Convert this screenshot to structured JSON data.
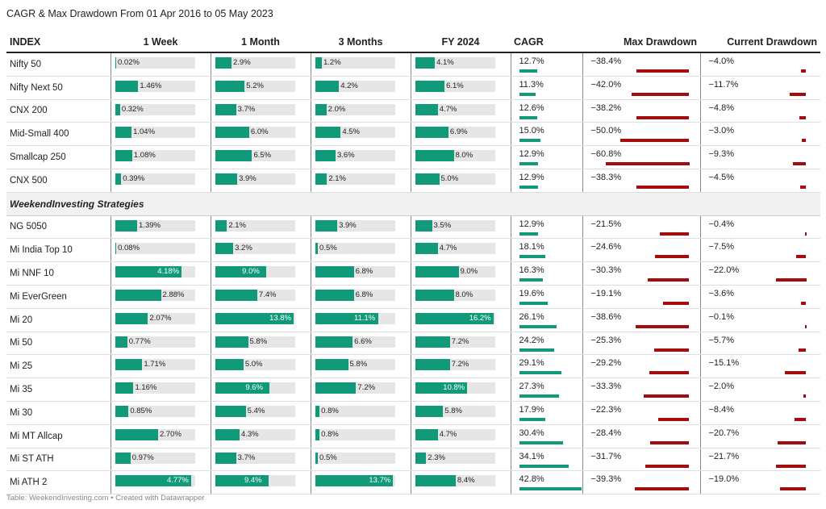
{
  "title": "CAGR & Max Drawdown From 01 Apr 2016 to 05 May 2023",
  "footer": "Table: WeekendInvesting.com • Created with Datawrapper",
  "colors": {
    "bar": "#109a7a",
    "bar_bg": "#e6e6e6",
    "drawdown": "#a30d0d"
  },
  "chart_data": {
    "type": "table",
    "columns": [
      "INDEX",
      "1 Week",
      "1 Month",
      "3 Months",
      "FY 2024",
      "CAGR",
      "Max Drawdown",
      "Current Drawdown"
    ],
    "section_label": "WeekendInvesting Strategies",
    "indices": [
      {
        "name": "Nifty 50",
        "w1": "0.02%",
        "m1": "2.9%",
        "m3": "1.2%",
        "fy": "4.1%",
        "cagr": "12.7%",
        "maxdd": "−38.4%",
        "curdd": "−4.0%"
      },
      {
        "name": "Nifty Next 50",
        "w1": "1.46%",
        "m1": "5.2%",
        "m3": "4.2%",
        "fy": "6.1%",
        "cagr": "11.3%",
        "maxdd": "−42.0%",
        "curdd": "−11.7%"
      },
      {
        "name": "CNX 200",
        "w1": "0.32%",
        "m1": "3.7%",
        "m3": "2.0%",
        "fy": "4.7%",
        "cagr": "12.6%",
        "maxdd": "−38.2%",
        "curdd": "−4.8%"
      },
      {
        "name": "Mid-Small 400",
        "w1": "1.04%",
        "m1": "6.0%",
        "m3": "4.5%",
        "fy": "6.9%",
        "cagr": "15.0%",
        "maxdd": "−50.0%",
        "curdd": "−3.0%"
      },
      {
        "name": "Smallcap 250",
        "w1": "1.08%",
        "m1": "6.5%",
        "m3": "3.6%",
        "fy": "8.0%",
        "cagr": "12.9%",
        "maxdd": "−60.8%",
        "curdd": "−9.3%"
      },
      {
        "name": "CNX 500",
        "w1": "0.39%",
        "m1": "3.9%",
        "m3": "2.1%",
        "fy": "5.0%",
        "cagr": "12.9%",
        "maxdd": "−38.3%",
        "curdd": "−4.5%"
      }
    ],
    "strategies": [
      {
        "name": "NG 5050",
        "w1": "1.39%",
        "m1": "2.1%",
        "m3": "3.9%",
        "fy": "3.5%",
        "cagr": "12.9%",
        "maxdd": "−21.5%",
        "curdd": "−0.4%"
      },
      {
        "name": "Mi India Top 10",
        "w1": "0.08%",
        "m1": "3.2%",
        "m3": "0.5%",
        "fy": "4.7%",
        "cagr": "18.1%",
        "maxdd": "−24.6%",
        "curdd": "−7.5%"
      },
      {
        "name": "Mi NNF 10",
        "w1": "4.18%",
        "m1": "9.0%",
        "m3": "6.8%",
        "fy": "9.0%",
        "cagr": "16.3%",
        "maxdd": "−30.3%",
        "curdd": "−22.0%"
      },
      {
        "name": "Mi EverGreen",
        "w1": "2.88%",
        "m1": "7.4%",
        "m3": "6.8%",
        "fy": "8.0%",
        "cagr": "19.6%",
        "maxdd": "−19.1%",
        "curdd": "−3.6%"
      },
      {
        "name": "Mi 20",
        "w1": "2.07%",
        "m1": "13.8%",
        "m3": "11.1%",
        "fy": "16.2%",
        "cagr": "26.1%",
        "maxdd": "−38.6%",
        "curdd": "−0.1%"
      },
      {
        "name": "Mi 50",
        "w1": "0.77%",
        "m1": "5.8%",
        "m3": "6.6%",
        "fy": "7.2%",
        "cagr": "24.2%",
        "maxdd": "−25.3%",
        "curdd": "−5.7%"
      },
      {
        "name": "Mi 25",
        "w1": "1.71%",
        "m1": "5.0%",
        "m3": "5.8%",
        "fy": "7.2%",
        "cagr": "29.1%",
        "maxdd": "−29.2%",
        "curdd": "−15.1%"
      },
      {
        "name": "Mi 35",
        "w1": "1.16%",
        "m1": "9.6%",
        "m3": "7.2%",
        "fy": "10.8%",
        "cagr": "27.3%",
        "maxdd": "−33.3%",
        "curdd": "−2.0%"
      },
      {
        "name": "Mi 30",
        "w1": "0.85%",
        "m1": "5.4%",
        "m3": "0.8%",
        "fy": "5.8%",
        "cagr": "17.9%",
        "maxdd": "−22.3%",
        "curdd": "−8.4%"
      },
      {
        "name": "Mi MT Allcap",
        "w1": "2.70%",
        "m1": "4.3%",
        "m3": "0.8%",
        "fy": "4.7%",
        "cagr": "30.4%",
        "maxdd": "−28.4%",
        "curdd": "−20.7%"
      },
      {
        "name": "Mi ST ATH",
        "w1": "0.97%",
        "m1": "3.7%",
        "m3": "0.5%",
        "fy": "2.3%",
        "cagr": "34.1%",
        "maxdd": "−31.7%",
        "curdd": "−21.7%"
      },
      {
        "name": "Mi ATH 2",
        "w1": "4.77%",
        "m1": "9.4%",
        "m3": "13.7%",
        "fy": "8.4%",
        "cagr": "42.8%",
        "maxdd": "−39.3%",
        "curdd": "−19.0%"
      }
    ]
  }
}
